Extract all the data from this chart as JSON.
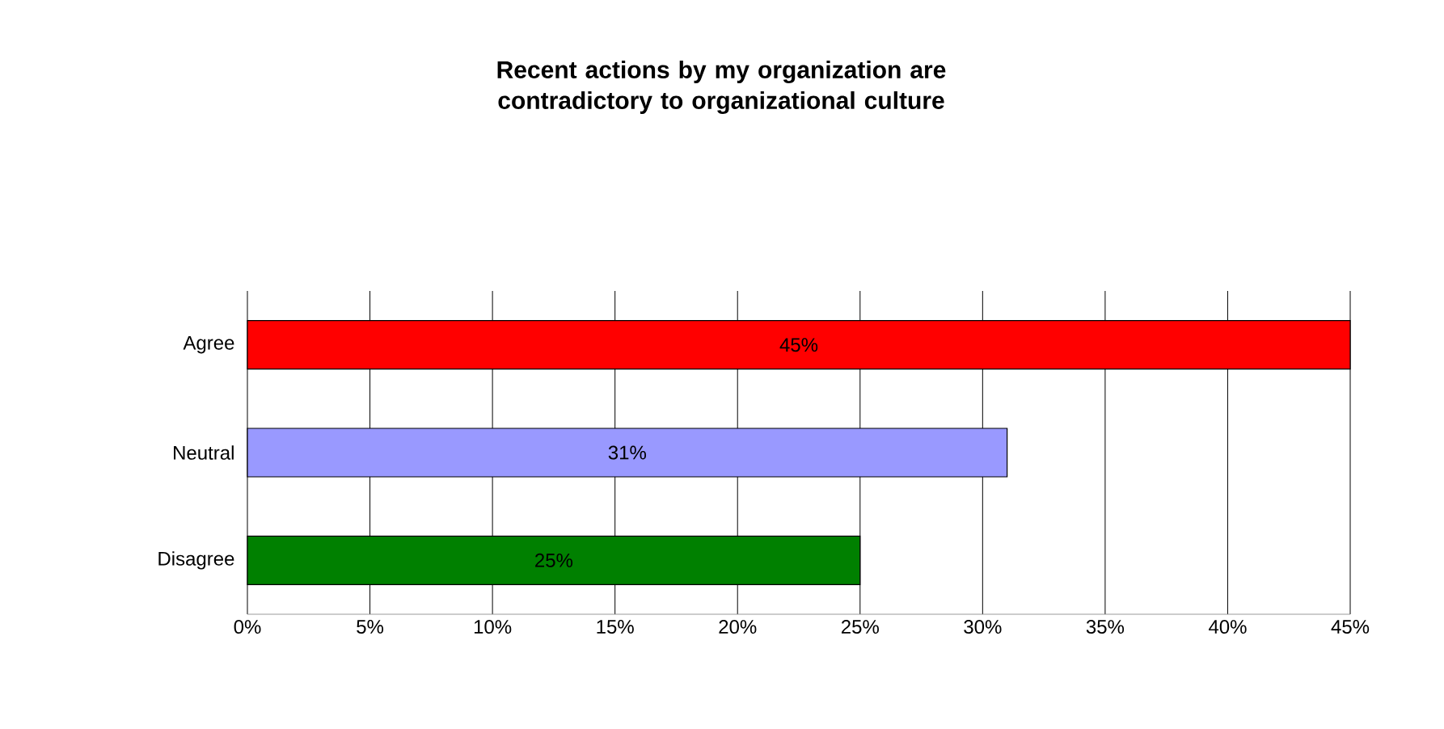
{
  "chart_data": {
    "type": "bar",
    "orientation": "horizontal",
    "title": "Recent actions by my organization are contradictory to organizational culture",
    "categories": [
      "Agree",
      "Neutral",
      "Disagree"
    ],
    "values": [
      45,
      31,
      25
    ],
    "colors": [
      "#ff0000",
      "#9999ff",
      "#008000"
    ],
    "value_labels": [
      "45%",
      "31%",
      "25%"
    ],
    "xlim": [
      0,
      45
    ],
    "xticks": [
      {
        "value": 0,
        "label": "0%"
      },
      {
        "value": 5,
        "label": "5%"
      },
      {
        "value": 10,
        "label": "10%"
      },
      {
        "value": 15,
        "label": "15%"
      },
      {
        "value": 20,
        "label": "20%"
      },
      {
        "value": 25,
        "label": "25%"
      },
      {
        "value": 30,
        "label": "30%"
      },
      {
        "value": 35,
        "label": "35%"
      },
      {
        "value": 40,
        "label": "40%"
      },
      {
        "value": 45,
        "label": "45%"
      }
    ],
    "grid": "x"
  }
}
